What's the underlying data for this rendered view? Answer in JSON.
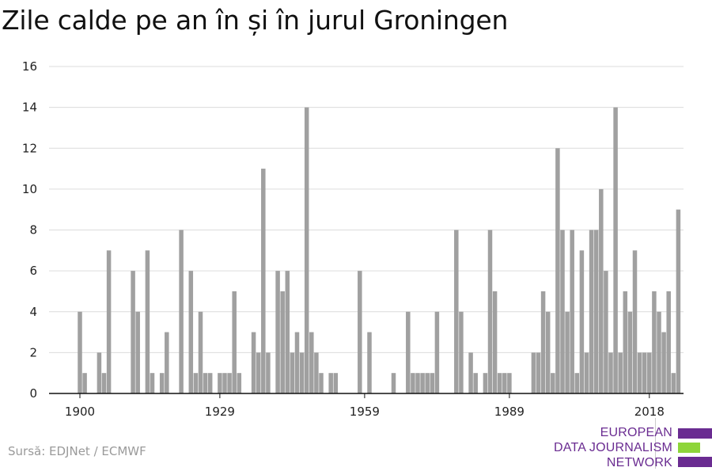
{
  "title": "Zile calde pe an în și în jurul Groningen",
  "source": "Sursă: EDJNet / ECMWF",
  "logo": {
    "lines": [
      "EUROPEAN",
      "DATA JOURNALISM",
      "NETWORK"
    ],
    "colors": [
      "#6a2c91",
      "#8ed53a",
      "#6a2c91"
    ]
  },
  "colors": {
    "bar": "#a0a0a0",
    "grid": "#dcdcdc",
    "axis": "#111111"
  },
  "chart_data": {
    "type": "bar",
    "title": "Zile calde pe an în și în jurul Groningen",
    "xlabel": "",
    "ylabel": "",
    "ylim": [
      0,
      16
    ],
    "yticks": [
      0,
      2,
      4,
      6,
      8,
      10,
      12,
      14,
      16
    ],
    "xticks": [
      1900,
      1929,
      1959,
      1989,
      2018
    ],
    "grid": true,
    "x_start": 1900,
    "values": [
      4,
      1,
      0,
      0,
      2,
      1,
      7,
      0,
      0,
      0,
      0,
      6,
      4,
      0,
      7,
      1,
      0,
      1,
      3,
      0,
      0,
      8,
      0,
      6,
      1,
      4,
      1,
      1,
      0,
      1,
      1,
      1,
      5,
      1,
      0,
      0,
      3,
      2,
      11,
      2,
      0,
      6,
      5,
      6,
      2,
      3,
      2,
      14,
      3,
      2,
      1,
      0,
      1,
      1,
      0,
      0,
      0,
      0,
      6,
      0,
      3,
      0,
      0,
      0,
      0,
      1,
      0,
      0,
      4,
      1,
      1,
      1,
      1,
      1,
      4,
      0,
      0,
      0,
      8,
      4,
      0,
      2,
      1,
      0,
      1,
      8,
      5,
      1,
      1,
      1,
      0,
      0,
      0,
      0,
      2,
      2,
      5,
      4,
      1,
      12,
      8,
      4,
      8,
      1,
      7,
      2,
      8,
      8,
      10,
      6,
      2,
      14,
      2,
      5,
      4,
      7,
      2,
      2,
      2,
      5,
      4,
      3,
      5,
      1,
      9
    ]
  }
}
